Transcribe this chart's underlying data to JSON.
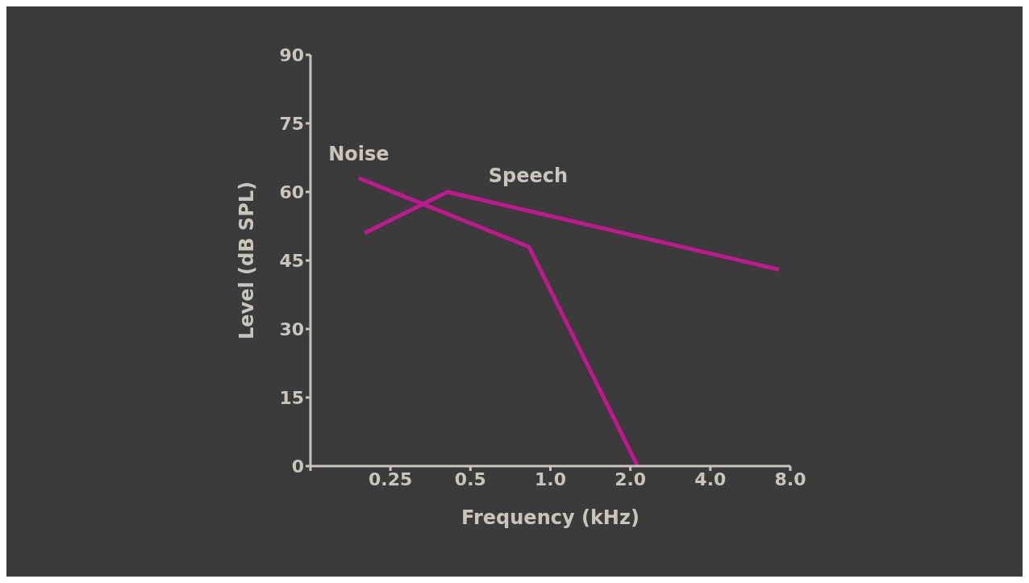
{
  "chart_data": {
    "type": "line",
    "xlabel": "Frequency (kHz)",
    "ylabel": "Level (dB SPL)",
    "log": "x",
    "xlim": [
      0.125,
      8
    ],
    "xticks": [
      {
        "value": 0.125,
        "label": null
      },
      0.25,
      0.5,
      {
        "value": 1,
        "label": "1.0"
      },
      {
        "value": 2,
        "label": "2.0"
      },
      {
        "value": 4,
        "label": "4.0"
      },
      {
        "value": 8,
        "label": "8.0"
      }
    ],
    "ylim": [
      0,
      90
    ],
    "yticks": [
      0,
      15,
      30,
      45,
      60,
      75,
      90
    ],
    "grid": false,
    "marker": "none",
    "line_style": "solid",
    "series": [
      {
        "name": "Noise",
        "color": "#c0188e",
        "x": [
          0.19,
          0.83,
          2.13
        ],
        "values": [
          63,
          48,
          0
        ]
      },
      {
        "name": "Speech",
        "color": "#c0188e",
        "x": [
          0.2,
          0.41,
          7.26
        ],
        "values": [
          51,
          60,
          43
        ]
      }
    ]
  }
}
